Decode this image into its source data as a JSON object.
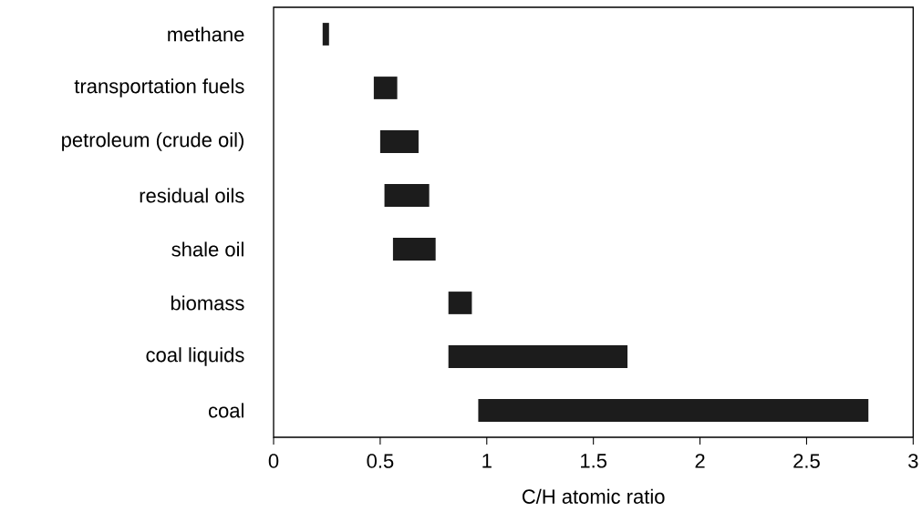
{
  "chart_data": {
    "type": "bar",
    "orientation": "horizontal",
    "xlabel": "C/H atomic ratio",
    "categories": [
      "methane",
      "transportation fuels",
      "petroleum (crude oil)",
      "residual oils",
      "shale oil",
      "biomass",
      "coal liquids",
      "coal"
    ],
    "base": [
      0.23,
      0.47,
      0.5,
      0.52,
      0.56,
      0.82,
      0.82,
      0.96
    ],
    "values": [
      0.03,
      0.11,
      0.18,
      0.21,
      0.2,
      0.11,
      0.84,
      1.83
    ],
    "color": "#1c1c1c",
    "xlim": [
      0,
      3
    ],
    "xticks": [
      0,
      0.5,
      1,
      1.5,
      2,
      2.5,
      3
    ],
    "grid": false
  }
}
